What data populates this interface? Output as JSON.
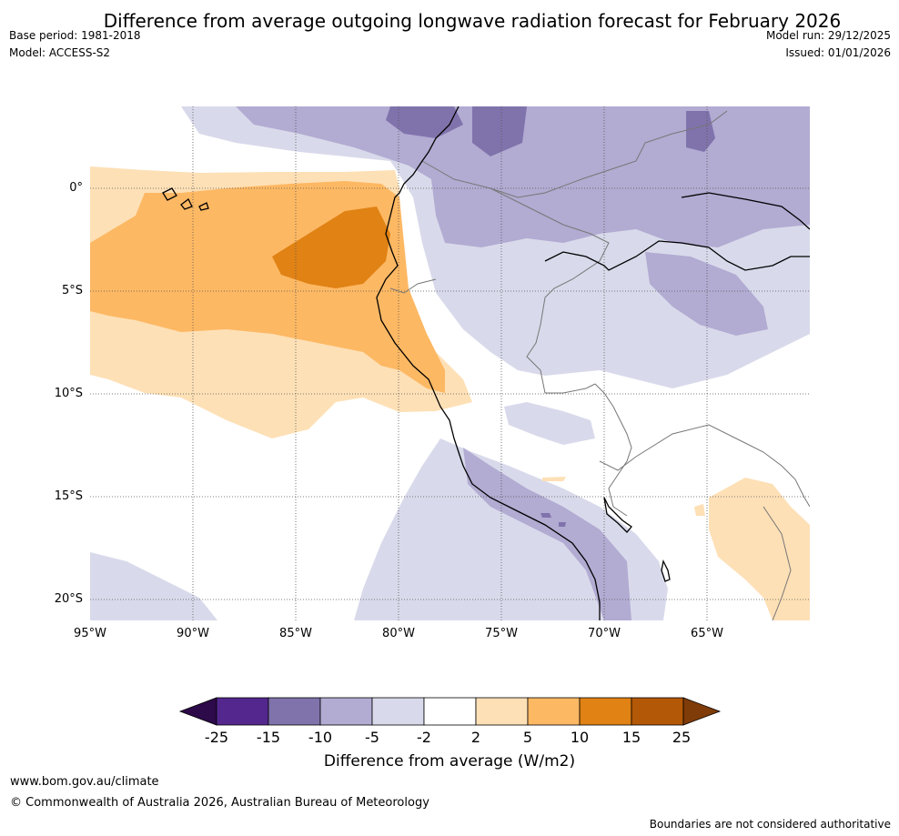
{
  "title": "Difference from average outgoing longwave radiation forecast for February 2026",
  "base_period": "Base period: 1981-2018",
  "model": "Model: ACCESS-S2",
  "model_run": "Model run: 29/12/2025",
  "issued": "Issued: 01/01/2026",
  "map": {
    "lon_labels": [
      "95°W",
      "90°W",
      "85°W",
      "80°W",
      "75°W",
      "70°W",
      "65°W"
    ],
    "lat_labels": [
      "0°",
      "5°S",
      "10°S",
      "15°S",
      "20°S"
    ],
    "lon_range": [
      -95,
      -60
    ],
    "lat_range": [
      -21,
      4
    ]
  },
  "colorbar": {
    "title": "Difference from average (W/m2)",
    "tick_labels": [
      "-25",
      "-15",
      "-10",
      "-5",
      "-2",
      "2",
      "5",
      "10",
      "15",
      "25"
    ],
    "colors": {
      "below_min": "#2d0a4a",
      "c1": "#54278f",
      "c2": "#8073ac",
      "c3": "#b2abd2",
      "c4": "#d8daeb",
      "c5": "#ffffff",
      "c6": "#fee0b6",
      "c7": "#fdb863",
      "c8": "#e08214",
      "c9": "#b35806",
      "above_max": "#7f3b08"
    }
  },
  "footer": {
    "website": "www.bom.gov.au/climate",
    "copyright": "© Commonwealth of Australia 2026, Australian Bureau of Meteorology",
    "disclaimer": "Boundaries are not considered authoritative"
  }
}
